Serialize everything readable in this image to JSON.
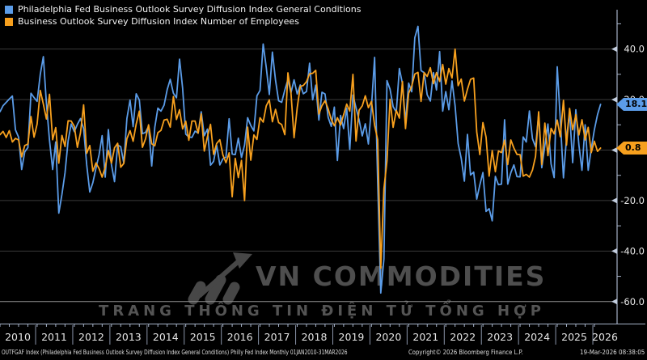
{
  "legend": {
    "general_conditions": "Philadelphia Fed Business Outlook Survey Diffusion Index General Conditions",
    "employees": "Business Outlook Survey Diffusion Index Number of Employees"
  },
  "colors": {
    "blue": "#5b9ce8",
    "orange": "#f7a01e",
    "grid": "#3a3a3a",
    "grid_bright": "#8f8f8f",
    "axis": "#a5b2c8",
    "tick_label": "#e8e8e8"
  },
  "badges": {
    "general_conditions": "18.1",
    "employees": "0.8"
  },
  "axis": {
    "y_major": [
      {
        "v": 40,
        "label": "40.0"
      },
      {
        "v": 20,
        "label": "20.0"
      },
      {
        "v": 0,
        "label": "0.0"
      },
      {
        "v": -20,
        "label": "-20.0"
      },
      {
        "v": -40,
        "label": "-40.0"
      },
      {
        "v": -60,
        "label": "-60.0"
      }
    ],
    "y_minor": [
      50,
      30,
      10,
      -10,
      -30,
      -50
    ],
    "years": [
      "2010",
      "2011",
      "2012",
      "2013",
      "2014",
      "2015",
      "2016",
      "2017",
      "2018",
      "2019",
      "2020",
      "2021",
      "2022",
      "2023",
      "2024",
      "2025",
      "2026"
    ]
  },
  "watermark": {
    "title": "VN COMMODITIES",
    "subtitle": "TRANG THÔNG TIN ĐIỆN TỬ TỔNG HỢP"
  },
  "statusbar": {
    "left": "OUTFGAF Index (Philadelphia Fed Business Outlook Survey Diffusion Index General Conditions) Philly Fed Index Monthly 01JAN2010-31MAR2026",
    "copyright": "Copyright© 2026 Bloomberg Finance L.P.",
    "timestamp": "19-Mar-2026 08:38:05"
  },
  "chart_data": {
    "type": "line",
    "title": "",
    "x_start": "2010-01",
    "x_end": "2026-03",
    "frequency": "monthly",
    "ylim": [
      -65,
      52
    ],
    "y_gridlines": [
      40,
      20,
      0,
      -20,
      -40,
      -60
    ],
    "legend_position": "top-left",
    "series": [
      {
        "name": "Philadelphia Fed Business Outlook Survey Diffusion Index General Conditions",
        "color": "#5b9ce8",
        "last_value": 18.1,
        "values": [
          15.2,
          17.6,
          18.9,
          20.2,
          21.4,
          8.0,
          5.1,
          -7.7,
          -0.7,
          1.0,
          22.5,
          20.8,
          19.3,
          30.0,
          37.0,
          18.5,
          3.9,
          -7.7,
          3.2,
          -25.0,
          -17.5,
          -9.0,
          3.6,
          10.3,
          7.3,
          10.2,
          12.5,
          8.5,
          -5.8,
          -16.6,
          -12.9,
          -7.1,
          -1.9,
          5.7,
          -10.7,
          8.1,
          -5.8,
          -12.5,
          2.0,
          1.3,
          -5.2,
          12.5,
          19.8,
          9.3,
          22.3,
          19.8,
          6.5,
          7.0,
          9.4,
          -6.3,
          9.0,
          16.6,
          15.4,
          17.8,
          23.9,
          28.0,
          22.5,
          20.7,
          36.0,
          24.5,
          6.3,
          5.2,
          5.0,
          7.5,
          6.7,
          15.2,
          5.7,
          8.3,
          -6.0,
          -4.5,
          1.9,
          -5.9,
          -3.5,
          -2.8,
          12.4,
          -1.6,
          -1.8,
          4.7,
          -2.9,
          2.0,
          12.8,
          9.7,
          7.6,
          21.5,
          23.6,
          42.0,
          32.8,
          22.0,
          38.8,
          27.6,
          19.5,
          18.9,
          23.8,
          27.9,
          22.7,
          27.8,
          22.2,
          25.8,
          22.3,
          23.2,
          34.4,
          19.9,
          25.7,
          11.9,
          22.9,
          22.2,
          12.9,
          9.4,
          17.0,
          -4.1,
          13.7,
          8.5,
          16.6,
          0.3,
          21.8,
          16.8,
          12.0,
          5.6,
          10.4,
          2.4,
          17.0,
          36.7,
          -12.7,
          -56.6,
          -43.1,
          27.5,
          24.1,
          17.2,
          15.0,
          32.3,
          26.3,
          11.1,
          26.5,
          23.1,
          44.5,
          49.0,
          31.5,
          30.7,
          21.9,
          19.4,
          30.7,
          23.8,
          39.0,
          15.4,
          23.2,
          16.0,
          27.4,
          17.6,
          2.6,
          -3.3,
          -12.3,
          6.2,
          -9.9,
          -8.7,
          -19.4,
          -13.8,
          -8.9,
          -24.3,
          -23.2,
          -28.0,
          -10.4,
          -13.7,
          -13.5,
          12.0,
          -13.5,
          -9.0,
          -5.9,
          -10.5,
          -10.6,
          5.2,
          3.2,
          15.5,
          4.5,
          1.3,
          13.9,
          -7.0,
          1.7,
          10.3,
          -5.5,
          -10.9,
          33.0,
          12.0,
          -11.0,
          5.0,
          15.0,
          -5.0,
          16.0,
          2.0,
          -8.0,
          10.0,
          -8.0,
          0.5,
          8.0,
          14.0,
          18.1
        ]
      },
      {
        "name": "Business Outlook Survey Diffusion Index Number of Employees",
        "color": "#f7a01e",
        "last_value": 0.8,
        "values": [
          6.1,
          7.4,
          5.0,
          7.7,
          3.2,
          4.6,
          4.0,
          -2.7,
          1.8,
          2.4,
          13.3,
          5.1,
          10.3,
          23.6,
          18.2,
          12.3,
          22.1,
          4.1,
          8.9,
          -5.2,
          5.8,
          1.4,
          11.6,
          11.5,
          9.4,
          1.1,
          6.8,
          17.9,
          -1.3,
          1.8,
          -8.4,
          -5.1,
          -7.3,
          -10.7,
          -6.8,
          -0.2,
          -5.2,
          0.9,
          2.7,
          -6.8,
          -5.3,
          4.5,
          7.7,
          3.5,
          10.3,
          15.4,
          1.1,
          4.4,
          10.0,
          2.5,
          1.7,
          6.9,
          7.8,
          11.9,
          12.2,
          9.1,
          21.2,
          12.1,
          16.0,
          8.4,
          11.4,
          3.9,
          11.5,
          11.5,
          6.7,
          14.3,
          -0.4,
          5.3,
          10.2,
          -1.7,
          2.6,
          4.1,
          -1.9,
          -5.0,
          -1.1,
          -18.5,
          -3.3,
          -10.9,
          -4.1,
          -20.0,
          9.1,
          -4.0,
          6.0,
          4.2,
          12.8,
          11.1,
          17.5,
          19.9,
          11.2,
          16.1,
          10.9,
          10.1,
          6.1,
          30.6,
          22.6,
          4.9,
          16.8,
          25.2,
          25.6,
          27.1,
          30.2,
          30.4,
          31.6,
          14.3,
          17.6,
          19.5,
          16.3,
          12.1,
          9.6,
          12.8,
          9.9,
          14.0,
          18.2,
          15.4,
          30.0,
          3.6,
          15.8,
          17.5,
          21.5,
          16.8,
          19.3,
          9.8,
          4.1,
          -46.7,
          -15.3,
          -4.3,
          20.1,
          9.0,
          15.7,
          12.7,
          27.2,
          8.5,
          22.5,
          25.3,
          30.1,
          30.8,
          19.3,
          30.7,
          29.2,
          32.6,
          26.3,
          30.7,
          27.2,
          33.9,
          26.1,
          32.3,
          28.5,
          40.0,
          25.5,
          28.1,
          19.4,
          24.1,
          28.0,
          28.5,
          7.1,
          -1.8,
          10.9,
          5.1,
          -10.3,
          -0.2,
          -8.6,
          -0.4,
          -1.0,
          3.9,
          -5.7,
          4.0,
          0.8,
          -1.7,
          -1.8,
          -10.3,
          -9.6,
          -10.7,
          -7.9,
          -2.5,
          15.2,
          -5.7,
          10.7,
          -2.2,
          8.6,
          6.4,
          11.9,
          5.3,
          19.7,
          2.0,
          16.5,
          8.0,
          14.0,
          6.0,
          12.0,
          4.0,
          9.0,
          -1.0,
          3.5,
          -0.5,
          0.8
        ]
      }
    ]
  }
}
